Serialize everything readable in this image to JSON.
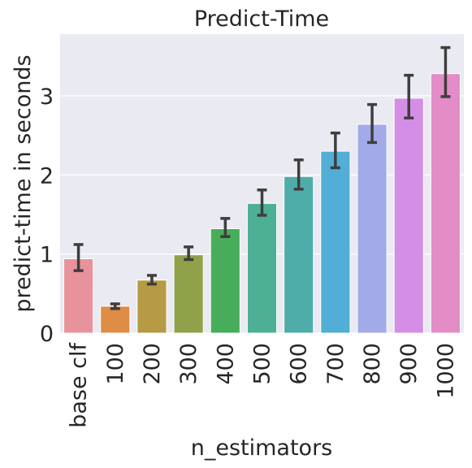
{
  "chart_data": {
    "type": "bar",
    "title": "Predict-Time",
    "xlabel": "n_estimators",
    "ylabel": "predict-time in seconds",
    "categories": [
      "base clf",
      "100",
      "200",
      "300",
      "400",
      "500",
      "600",
      "700",
      "800",
      "900",
      "1000"
    ],
    "values": [
      0.94,
      0.34,
      0.67,
      0.99,
      1.32,
      1.64,
      1.98,
      2.3,
      2.64,
      2.97,
      3.28
    ],
    "error_low": [
      0.79,
      0.31,
      0.62,
      0.93,
      1.22,
      1.49,
      1.82,
      2.09,
      2.41,
      2.72,
      2.99
    ],
    "error_high": [
      1.12,
      0.37,
      0.73,
      1.09,
      1.45,
      1.81,
      2.19,
      2.53,
      2.89,
      3.26,
      3.61
    ],
    "ylim": [
      0,
      3.78
    ],
    "yticks": [
      0,
      1,
      2,
      3
    ],
    "grid": true,
    "colors": [
      "#e8939b",
      "#df8c45",
      "#b69a44",
      "#8fa24a",
      "#48ad5a",
      "#4db094",
      "#4fada9",
      "#52aed6",
      "#a3aae8",
      "#d58ee6",
      "#e48cc5"
    ],
    "style": {
      "background": "#eaeaf2",
      "gridline": "#ffffff",
      "errorbar": "#3e3e3e"
    }
  }
}
